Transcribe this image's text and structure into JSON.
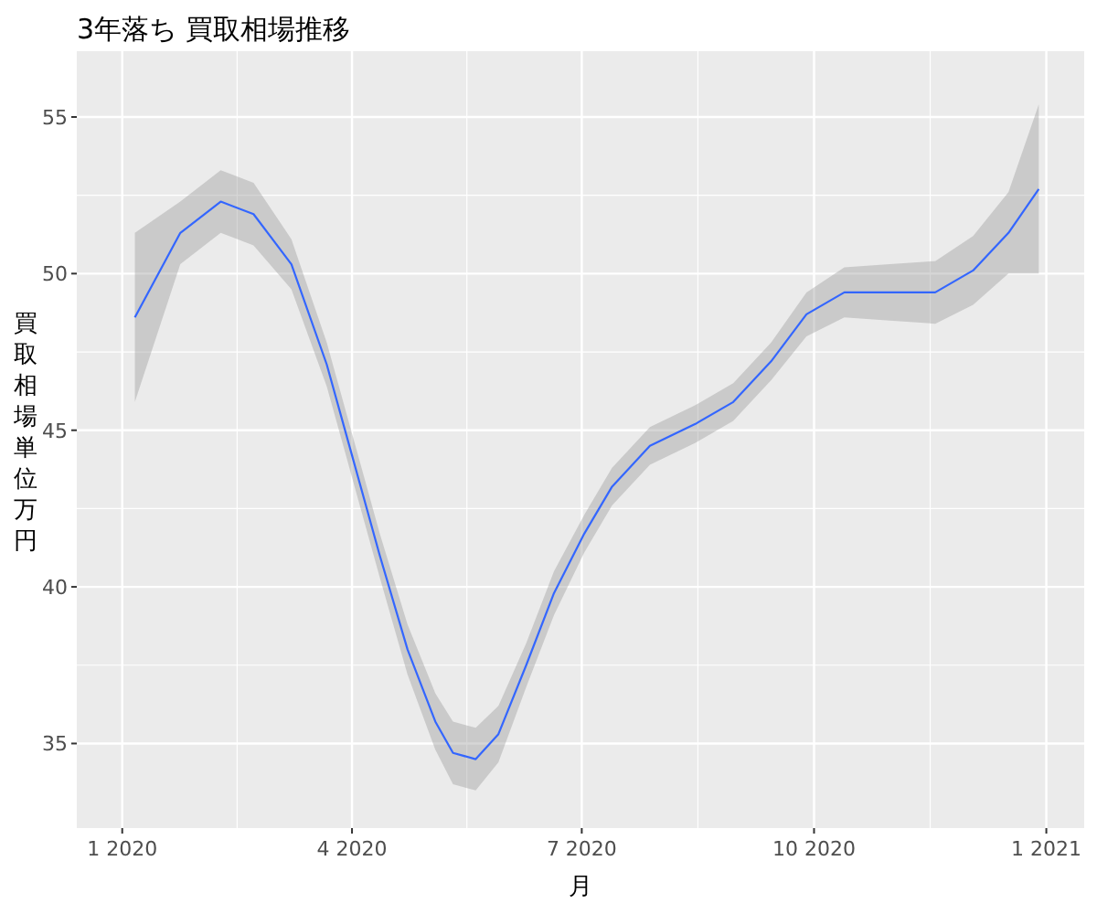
{
  "chart_data": {
    "type": "line",
    "title": "3年落ち 買取相場推移",
    "xlabel": "月",
    "ylabel": "買取相場単位万円",
    "xlim": [
      "2019-12-14",
      "2021-01-16"
    ],
    "ylim": [
      32.3,
      57.1
    ],
    "xticks": [
      {
        "value": "2020-01-01",
        "label": "1 2020"
      },
      {
        "value": "2020-04-01",
        "label": "4 2020"
      },
      {
        "value": "2020-07-01",
        "label": "7 2020"
      },
      {
        "value": "2020-10-01",
        "label": "10 2020"
      },
      {
        "value": "2021-01-01",
        "label": "1 2021"
      }
    ],
    "yticks": [
      35,
      40,
      45,
      50,
      55
    ],
    "grid": true,
    "series": [
      {
        "color": "#3366ff",
        "x": [
          "2020-01-06",
          "2020-01-24",
          "2020-02-09",
          "2020-02-22",
          "2020-03-08",
          "2020-03-22",
          "2020-04-01",
          "2020-04-12",
          "2020-04-23",
          "2020-05-04",
          "2020-05-11",
          "2020-05-20",
          "2020-05-29",
          "2020-06-09",
          "2020-06-20",
          "2020-07-02",
          "2020-07-13",
          "2020-07-28",
          "2020-08-15",
          "2020-08-30",
          "2020-09-14",
          "2020-09-28",
          "2020-10-13",
          "2020-10-31",
          "2020-11-18",
          "2020-12-03",
          "2020-12-17",
          "2020-12-29"
        ],
        "values": [
          48.6,
          51.3,
          52.3,
          51.9,
          50.3,
          47.1,
          44.2,
          41.0,
          38.0,
          35.7,
          34.7,
          34.5,
          35.3,
          37.5,
          39.8,
          41.7,
          43.2,
          44.5,
          45.2,
          45.9,
          47.2,
          48.7,
          49.4,
          49.4,
          49.4,
          50.1,
          51.3,
          52.7
        ],
        "lower": [
          45.9,
          50.3,
          51.3,
          50.9,
          49.5,
          46.4,
          43.5,
          40.3,
          37.2,
          34.8,
          33.7,
          33.5,
          34.4,
          36.8,
          39.1,
          41.1,
          42.6,
          43.9,
          44.6,
          45.3,
          46.6,
          48.0,
          48.6,
          48.5,
          48.4,
          49.0,
          50.0,
          50.0
        ],
        "upper": [
          51.3,
          52.3,
          53.3,
          52.9,
          51.1,
          47.8,
          44.9,
          41.7,
          38.8,
          36.6,
          35.7,
          35.5,
          36.2,
          38.2,
          40.5,
          42.3,
          43.8,
          45.1,
          45.8,
          46.5,
          47.8,
          49.4,
          50.2,
          50.3,
          50.4,
          51.2,
          52.6,
          55.4
        ]
      }
    ]
  }
}
